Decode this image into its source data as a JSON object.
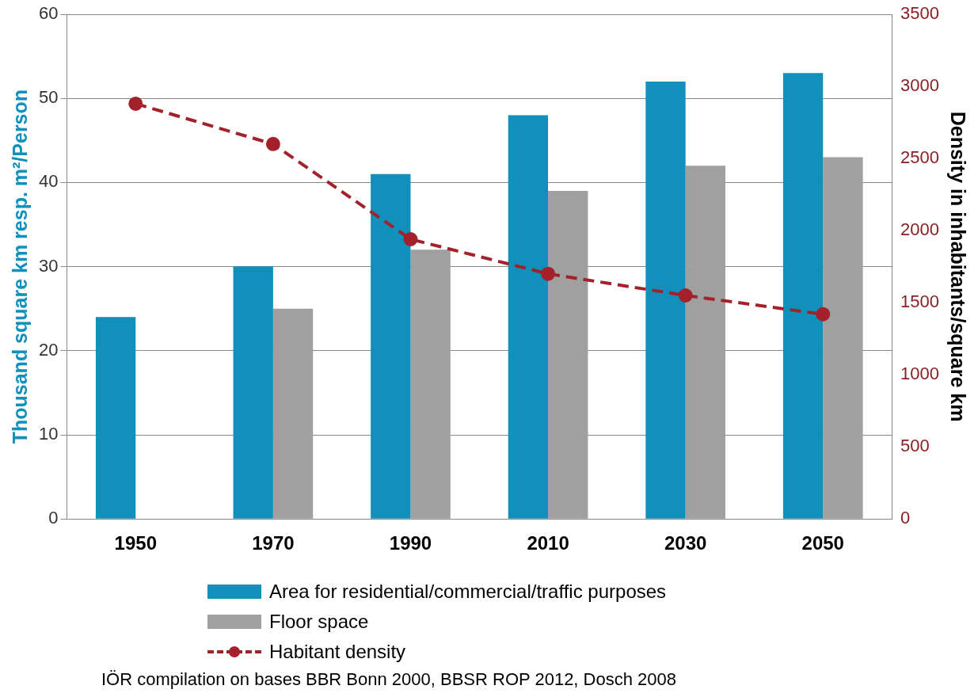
{
  "chart_data": {
    "type": "bar",
    "categories": [
      "1950",
      "1970",
      "1990",
      "2010",
      "2030",
      "2050"
    ],
    "ylabel": "Thousand square km resp. m²/Person",
    "y2label": "Density in inhabitants/square km",
    "ylim": [
      0,
      60
    ],
    "yticks": [
      0,
      10,
      20,
      30,
      40,
      50,
      60
    ],
    "y2lim": [
      0,
      3500
    ],
    "y2ticks": [
      0,
      500,
      1000,
      1500,
      2000,
      2500,
      3000,
      3500
    ],
    "series": [
      {
        "name": "Area for residential/commercial/traffic purposes",
        "color": "#1190bb",
        "values": [
          24,
          30,
          41,
          48,
          52,
          53
        ]
      },
      {
        "name": "Floor space",
        "color": "#a0a0a0",
        "values": [
          null,
          25,
          32,
          39,
          42,
          43
        ]
      },
      {
        "name": "Habitant density",
        "type": "line",
        "axis": "y2",
        "color": "#a3212b",
        "line_style": "dashed",
        "marker": "circle",
        "values": [
          2880,
          2600,
          1940,
          1700,
          1550,
          1420
        ]
      }
    ],
    "grid": "y",
    "legend": "bottom",
    "annotations": [
      "IÖR compilation on bases BBR Bonn 2000, BBSR ROP 2012, Dosch 2008"
    ]
  }
}
